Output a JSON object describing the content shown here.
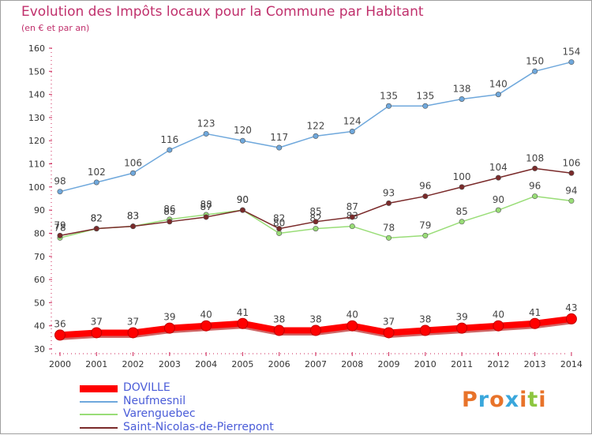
{
  "title": "Evolution des Impôts locaux pour la Commune par Habitant",
  "subtitle": "(en € et par an)",
  "logo": {
    "text": "Proxiti",
    "letters": [
      {
        "ch": "P",
        "color": "#e8732a"
      },
      {
        "ch": "r",
        "color": "#3aa7dc"
      },
      {
        "ch": "o",
        "color": "#e8732a"
      },
      {
        "ch": "x",
        "color": "#3aa7dc"
      },
      {
        "ch": "i",
        "color": "#e8732a"
      },
      {
        "ch": "t",
        "color": "#8cc63f"
      },
      {
        "ch": "i",
        "color": "#e8732a"
      }
    ]
  },
  "chart_data": {
    "type": "line",
    "title": "Evolution des Impôts locaux pour la Commune par Habitant",
    "subtitle": "(en € et par an)",
    "xlabel": "",
    "ylabel": "",
    "x": [
      "2000",
      "2001",
      "2002",
      "2003",
      "2004",
      "2005",
      "2006",
      "2007",
      "2008",
      "2009",
      "2010",
      "2011",
      "2012",
      "2013",
      "2014"
    ],
    "ylim": [
      30,
      160
    ],
    "yticks": [
      30,
      40,
      50,
      60,
      70,
      80,
      90,
      100,
      110,
      120,
      130,
      140,
      150,
      160
    ],
    "grid": false,
    "legend_position": "bottom-left",
    "series": [
      {
        "name": "DOVILLE",
        "color": "#ff0000",
        "values": [
          36,
          37,
          37,
          39,
          40,
          41,
          38,
          38,
          40,
          37,
          38,
          39,
          40,
          41,
          43
        ]
      },
      {
        "name": "Neufmesnil",
        "color": "#6fa8dc",
        "values": [
          98,
          102,
          106,
          116,
          123,
          120,
          117,
          122,
          124,
          135,
          135,
          138,
          140,
          150,
          154
        ]
      },
      {
        "name": "Varenguebec",
        "color": "#99dd77",
        "values": [
          78,
          82,
          83,
          86,
          88,
          90,
          80,
          82,
          83,
          78,
          79,
          85,
          90,
          96,
          94
        ]
      },
      {
        "name": "Saint-Nicolas-de-Pierrepont",
        "color": "#7a2a2a",
        "values": [
          79,
          82,
          83,
          85,
          87,
          90,
          82,
          85,
          87,
          93,
          96,
          100,
          104,
          108,
          106
        ]
      }
    ],
    "data_labels": {
      "DOVILLE": [
        "36",
        "37",
        "37",
        "39",
        "40",
        "41",
        "38",
        "38",
        "40",
        "37",
        "38",
        "39",
        "40",
        "41",
        "43"
      ],
      "Neufmesnil": [
        "98",
        "102",
        "106",
        "116",
        "123",
        "120",
        "117",
        "122",
        "124",
        "135",
        "135",
        "138",
        "140",
        "150",
        "154"
      ],
      "Varenguebec": [
        "78",
        "82",
        "83",
        "86",
        "88",
        "90",
        "80",
        "82",
        "83",
        "78",
        "79",
        "85",
        "90",
        "96",
        "94"
      ],
      "Saint-Nicolas-de-Pierrepont": [
        "79",
        "82",
        "83",
        "85",
        "87",
        "90",
        "82",
        "85",
        "87",
        "93",
        "96",
        "100",
        "104",
        "108",
        "106"
      ]
    }
  }
}
